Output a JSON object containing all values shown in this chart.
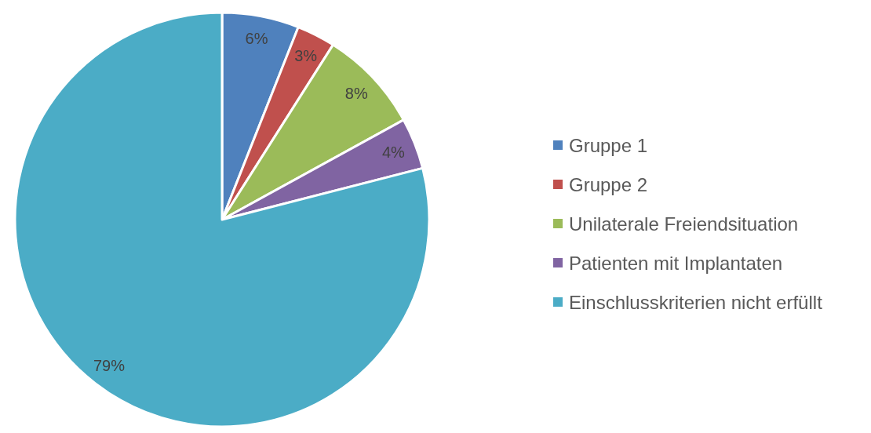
{
  "chart_data": {
    "type": "pie",
    "categories": [
      "Gruppe 1",
      "Gruppe 2",
      "Unilaterale Freiendsituation",
      "Patienten mit Implantaten",
      "Einschlusskriterien nicht erfüllt"
    ],
    "values": [
      6,
      3,
      8,
      4,
      79
    ],
    "colors": [
      "#4f81bd",
      "#c0504d",
      "#9bbb59",
      "#8064a2",
      "#4bacc6"
    ],
    "value_labels": [
      "6%",
      "3%",
      "8%",
      "4%",
      "79%"
    ],
    "legend": "right"
  }
}
